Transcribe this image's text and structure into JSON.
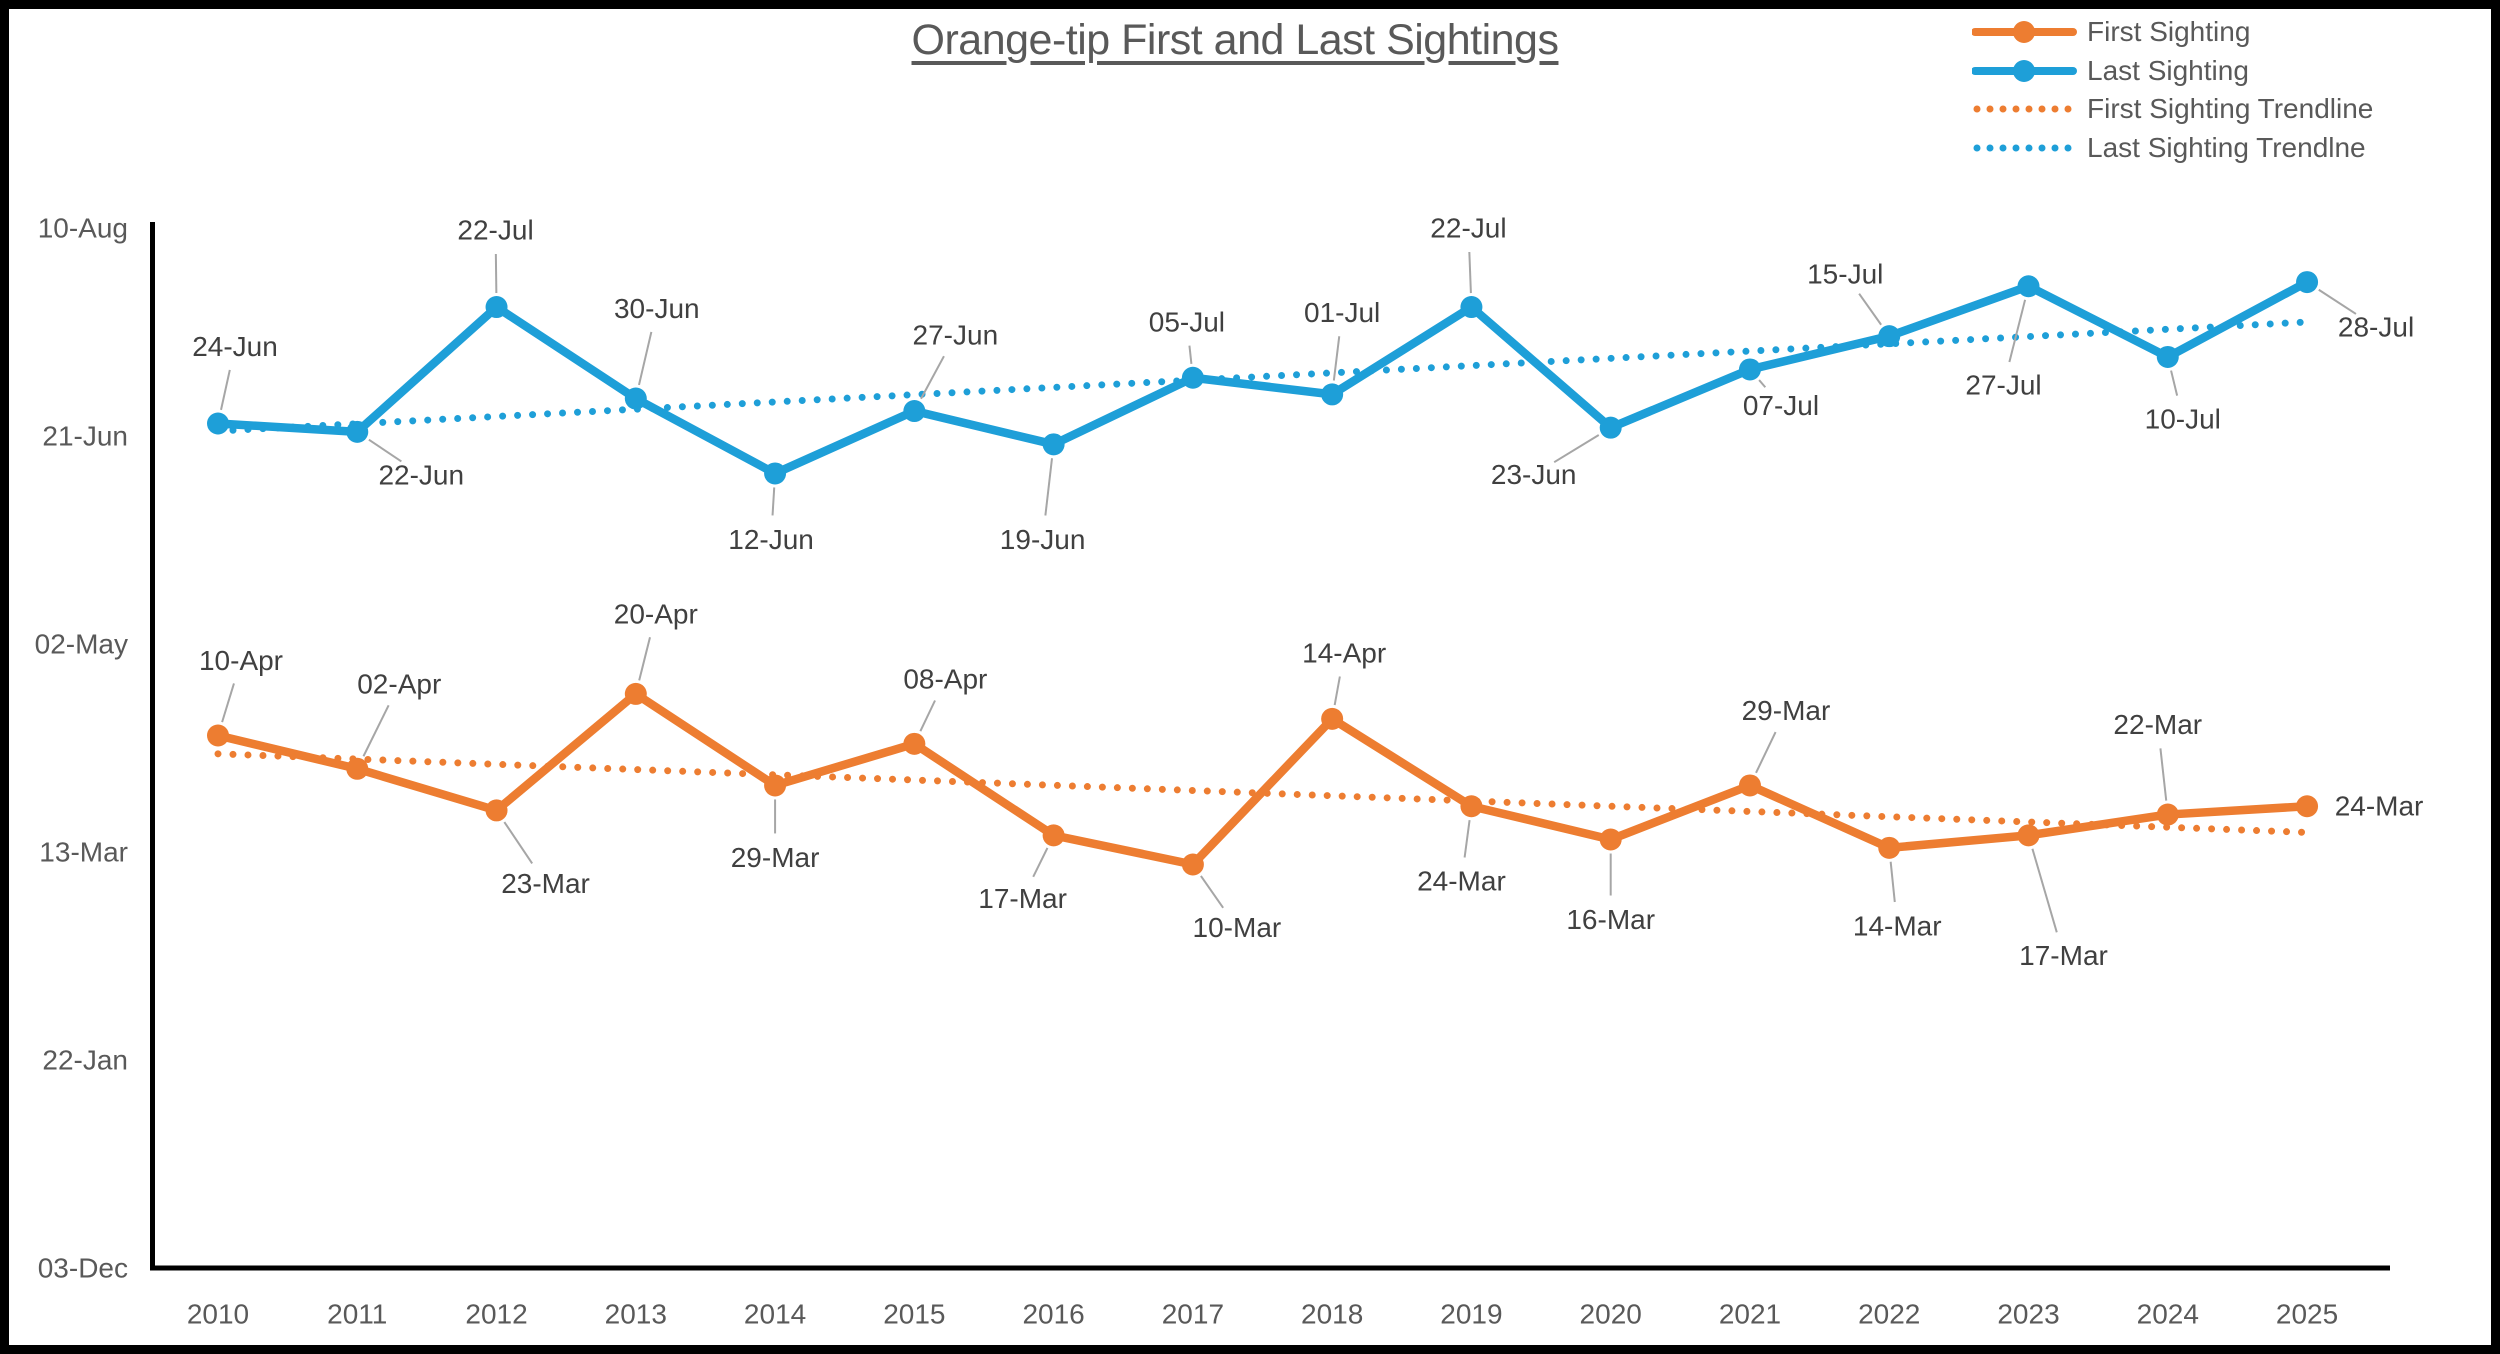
{
  "window": {
    "background": "#ffffff",
    "frame_color": "#000000"
  },
  "chart": {
    "title": "Orange-tip First and Last Sightings",
    "title_color": "#595959"
  },
  "legend": {
    "items": [
      {
        "label": "First Sighting",
        "color": "#ED7D31",
        "style": "line-with-marker"
      },
      {
        "label": "Last Sighting",
        "color": "#1E9FD8",
        "style": "line-with-marker"
      },
      {
        "label": "First Sighting Trendline",
        "color": "#ED7D31",
        "style": "dotted"
      },
      {
        "label": "Last Sighting Trendlne",
        "color": "#1E9FD8",
        "style": "dotted"
      }
    ]
  },
  "chart_data": {
    "type": "line",
    "title": "Orange-tip First and Last Sightings",
    "categories": [
      "2010",
      "2011",
      "2012",
      "2013",
      "2014",
      "2015",
      "2016",
      "2017",
      "2018",
      "2019",
      "2020",
      "2021",
      "2022",
      "2023",
      "2024",
      "2025"
    ],
    "y_axis": {
      "baseline_date": "03-Dec",
      "tick_labels": [
        "03-Dec",
        "22-Jan",
        "13-Mar",
        "02-May",
        "21-Jun",
        "10-Aug"
      ],
      "tick_day_offsets": [
        0,
        50,
        100,
        150,
        200,
        250
      ],
      "grid": false
    },
    "series": [
      {
        "name": "First Sighting",
        "color": "#ED7D31",
        "point_labels": [
          "10-Apr",
          "02-Apr",
          "23-Mar",
          "20-Apr",
          "29-Mar",
          "08-Apr",
          "17-Mar",
          "10-Mar",
          "14-Apr",
          "24-Mar",
          "16-Mar",
          "29-Mar",
          "14-Mar",
          "17-Mar",
          "22-Mar",
          "24-Mar"
        ],
        "days_since_03dec": [
          128,
          120,
          110,
          138,
          116,
          126,
          104,
          97,
          132,
          111,
          103,
          116,
          101,
          104,
          109,
          111
        ]
      },
      {
        "name": "Last Sighting",
        "color": "#1E9FD8",
        "point_labels": [
          "24-Jun",
          "22-Jun",
          "22-Jul",
          "30-Jun",
          "12-Jun",
          "27-Jun",
          "19-Jun",
          "05-Jul",
          "01-Jul",
          "22-Jul",
          "23-Jun",
          "07-Jul",
          "15-Jul",
          "27-Jul",
          "10-Jul",
          "28-Jul"
        ],
        "days_since_03dec": [
          203,
          201,
          231,
          209,
          191,
          206,
          198,
          214,
          210,
          231,
          202,
          216,
          224,
          236,
          219,
          237
        ]
      }
    ],
    "trendlines": [
      {
        "name": "First Sighting Trendline",
        "series": "First Sighting",
        "color": "#ED7D31",
        "start_day": 123.6,
        "end_day": 104.7
      },
      {
        "name": "Last Sighting Trendlne",
        "series": "Last Sighting",
        "color": "#1E9FD8",
        "start_day": 201.2,
        "end_day": 227.4
      }
    ],
    "legend_position": "top-right"
  }
}
